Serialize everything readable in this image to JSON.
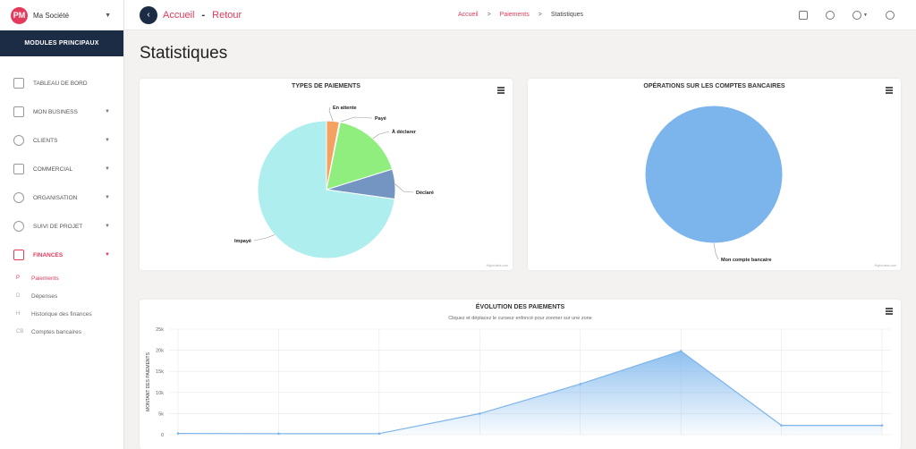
{
  "company": {
    "name": "Ma Société",
    "logo_text": "PM"
  },
  "sidebar": {
    "header": "MODULES PRINCIPAUX",
    "items": [
      {
        "label": "TABLEAU DE BORD",
        "icon": "dashboard-icon"
      },
      {
        "label": "MON BUSINESS",
        "icon": "briefcase-icon"
      },
      {
        "label": "CLIENTS",
        "icon": "user-icon"
      },
      {
        "label": "COMMERCIAL",
        "icon": "document-icon"
      },
      {
        "label": "ORGANISATION",
        "icon": "clock-icon"
      },
      {
        "label": "SUIVI DE PROJET",
        "icon": "lightbulb-icon"
      },
      {
        "label": "FINANCES",
        "icon": "finance-icon"
      }
    ],
    "sub_items": [
      {
        "key": "P",
        "label": "Paiements"
      },
      {
        "key": "D",
        "label": "Dépenses"
      },
      {
        "key": "H",
        "label": "Historique des finances"
      },
      {
        "key": "CB",
        "label": "Comptes bancaires"
      }
    ]
  },
  "topbar": {
    "title": "Accueil",
    "separator": "-",
    "back_label": "Retour",
    "breadcrumb": [
      "Accueil",
      "Paiements",
      "Statistiques"
    ],
    "crumb_sep": ">"
  },
  "page": {
    "title": "Statistiques"
  },
  "credits": "Highcharts.com",
  "chart_data": [
    {
      "type": "pie",
      "title": "TYPES DE PAIEMENTS",
      "slices": [
        {
          "label": "En attente",
          "value": 3,
          "color": "#f4a261"
        },
        {
          "label": "Payé",
          "value": 0.2,
          "color": "#e9c46a"
        },
        {
          "label": "À déclarer",
          "value": 17,
          "color": "#90ee7e"
        },
        {
          "label": "Déclaré",
          "value": 7,
          "color": "#7495c2"
        },
        {
          "label": "Impayé",
          "value": 72.8,
          "color": "#aeeeee"
        }
      ]
    },
    {
      "type": "pie",
      "title": "OPÉRATIONS SUR LES COMPTES BANCAIRES",
      "slices": [
        {
          "label": "Mon compte bancaire",
          "value": 100,
          "color": "#7cb5ec"
        }
      ]
    },
    {
      "type": "area",
      "title": "ÉVOLUTION DES PAIEMENTS",
      "subtitle": "Cliquez et déplacez le curseur enfoncé pour zoomer sur une zone",
      "ylabel": "MONTANT DES PAIEMENTS",
      "yticks": [
        "0",
        "5k",
        "10k",
        "15k",
        "20k",
        "25k"
      ],
      "ylim": [
        0,
        25000
      ],
      "x": [
        0,
        1,
        2,
        3,
        4,
        5,
        6,
        7
      ],
      "values": [
        300,
        250,
        250,
        5000,
        12000,
        19800,
        2200,
        2200
      ],
      "color": "#7cb5ec"
    }
  ]
}
